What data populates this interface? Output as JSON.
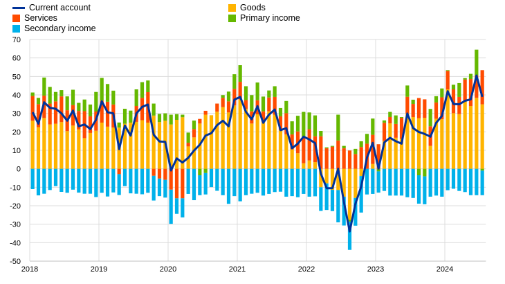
{
  "chart_data": {
    "type": "bar",
    "subtype": "stacked bar with line overlay",
    "title": "",
    "xlabel": "",
    "ylabel": "",
    "ylim": [
      -50,
      70
    ],
    "yticks": [
      "70",
      "60",
      "50",
      "40",
      "30",
      "20",
      "10",
      "0",
      "-10",
      "-20",
      "-30",
      "-40",
      "-50"
    ],
    "xticks": [
      "2018",
      "2019",
      "2020",
      "2021",
      "2022",
      "2023",
      "2024"
    ],
    "grid": true,
    "legend_placement": "top",
    "start": "2018-01",
    "frequency": "monthly",
    "series": [
      {
        "name": "Goods",
        "kind": "bar",
        "color": "#ffb400",
        "values": [
          26,
          22.5,
          27.5,
          24,
          24.4,
          25.3,
          20.4,
          23.4,
          21.3,
          16.6,
          19.4,
          20.6,
          25,
          22.8,
          22.3,
          22.3,
          24.4,
          25,
          25.4,
          26.3,
          25,
          28.8,
          25.3,
          26,
          24,
          26.5,
          27.9,
          12.1,
          17,
          24.5,
          29.3,
          29,
          30.9,
          33.4,
          30.5,
          34.3,
          37.5,
          32.4,
          24.5,
          29.5,
          25.5,
          31.1,
          29.3,
          21.1,
          18.6,
          10.5,
          8.4,
          3,
          4.5,
          3.6,
          -10,
          -7.9,
          -11.4,
          -11.5,
          -15.1,
          -27.6,
          -15.8,
          -3.9,
          0,
          2.6,
          0,
          15.1,
          24.6,
          16.8,
          16.1,
          29.9,
          28,
          27.4,
          27.6,
          12.4,
          27.1,
          26.8,
          43,
          30.1,
          29.6,
          36.4,
          34,
          38.4,
          34.9
        ]
      },
      {
        "name": "Services",
        "kind": "bar",
        "color": "#ff4b00",
        "values": [
          13.4,
          12.5,
          12.1,
          11.3,
          12.1,
          13.9,
          11.3,
          11.1,
          10,
          14.6,
          9,
          10.4,
          11.9,
          13.5,
          12.5,
          -2.9,
          0,
          0,
          8.6,
          12.1,
          16.5,
          -3.8,
          -5.3,
          -6,
          -11.3,
          -16,
          -16,
          2,
          4.5,
          2.5,
          2.1,
          0,
          4.4,
          5,
          6,
          9,
          9.6,
          4.8,
          6.6,
          7.6,
          5.6,
          7.5,
          9.6,
          7.3,
          11.5,
          8.1,
          11.8,
          14.4,
          16.9,
          14,
          17.6,
          11.1,
          12,
          15.3,
          11.1,
          9.9,
          8,
          11.8,
          13.6,
          15.8,
          13.3,
          9.8,
          3.4,
          7.5,
          11.5,
          9.1,
          7.1,
          10.9,
          10,
          10.6,
          8.8,
          11.9,
          10,
          12.9,
          9.3,
          11.9,
          14.6,
          12.1,
          18.5
        ]
      },
      {
        "name": "Primary income",
        "kind": "bar",
        "color": "#65b800",
        "values": [
          1.9,
          3.4,
          9.8,
          9,
          5.1,
          3.4,
          7.5,
          8.3,
          4.4,
          6.3,
          6.4,
          10.6,
          12.3,
          9.6,
          7.5,
          2.75,
          8.1,
          6.5,
          9,
          8.5,
          6.3,
          6.5,
          4.4,
          4,
          5.3,
          3.1,
          1.4,
          5.5,
          4.6,
          -3.5,
          -2.3,
          0,
          0,
          1.5,
          5.3,
          7.9,
          9,
          7.5,
          8.8,
          9.6,
          8,
          3.8,
          5.8,
          4.5,
          6.6,
          7.1,
          8.5,
          13.4,
          9.1,
          11.3,
          2.9,
          0.5,
          0.4,
          14,
          1.3,
          -1,
          2.8,
          3.1,
          5.3,
          8.8,
          -1.4,
          1.3,
          2.8,
          4.6,
          0.4,
          6.1,
          2.3,
          -3.5,
          -4.1,
          9.4,
          3.4,
          4.8,
          0.4,
          2.5,
          7.5,
          0.8,
          2.8,
          14,
          -1
        ]
      },
      {
        "name": "Secondary income",
        "kind": "bar",
        "color": "#00b1ea",
        "values": [
          -11,
          -14.4,
          -13.5,
          -11.5,
          -9.4,
          -12.5,
          -13,
          -11.3,
          -12.9,
          -13.5,
          -13.5,
          -15.3,
          -13,
          -15,
          -12.8,
          -11.3,
          -9.4,
          -13.3,
          -13.5,
          -13.8,
          -13,
          -13.4,
          -9.5,
          -9.6,
          -18.5,
          -8.4,
          -10.3,
          -13.6,
          -17,
          -10.8,
          -11.6,
          -9.9,
          -11.9,
          -14.3,
          -19,
          -14.8,
          -17.6,
          -14.3,
          -13.5,
          -13,
          -14.5,
          -13.6,
          -12.6,
          -12.4,
          -15.1,
          -14.8,
          -15.4,
          -13.6,
          -15.1,
          -14.9,
          -12.8,
          -14.4,
          -11.5,
          -17.5,
          -15.6,
          -15.3,
          -15,
          -19.8,
          -13.9,
          -13.6,
          -11.5,
          -12,
          -14.5,
          -14.5,
          -14.5,
          -15.4,
          -15.8,
          -15.4,
          -15.1,
          -15.1,
          -14.5,
          -15.1,
          -11.6,
          -10.8,
          -12,
          -12.6,
          -14.3,
          -14.3,
          -13.3
        ]
      },
      {
        "name": "Current account",
        "kind": "line",
        "color": "#003299",
        "values": [
          30.6,
          24.4,
          36,
          33,
          32.5,
          30,
          26,
          31.5,
          23,
          24,
          21.5,
          26.5,
          36.5,
          30.6,
          30,
          10.6,
          23.4,
          18,
          30,
          33.5,
          34.8,
          18.4,
          14.8,
          14.6,
          -0.9,
          5.6,
          3.4,
          6,
          9.9,
          13,
          18,
          19.3,
          23.6,
          26,
          23,
          37.4,
          38.9,
          30.8,
          26.8,
          33.9,
          24.9,
          29.3,
          32.1,
          20.9,
          22,
          11.1,
          13.6,
          17.4,
          15.9,
          13.9,
          -2.6,
          -10.5,
          -10.5,
          0,
          -18,
          -33.9,
          -18.9,
          -9.5,
          6.1,
          14,
          0.1,
          14.3,
          16.8,
          14.9,
          13.6,
          29.9,
          22,
          19.9,
          18.9,
          17.4,
          24.9,
          28.6,
          42,
          35.1,
          34.9,
          36.8,
          37.6,
          50.5,
          38.9
        ]
      }
    ]
  }
}
